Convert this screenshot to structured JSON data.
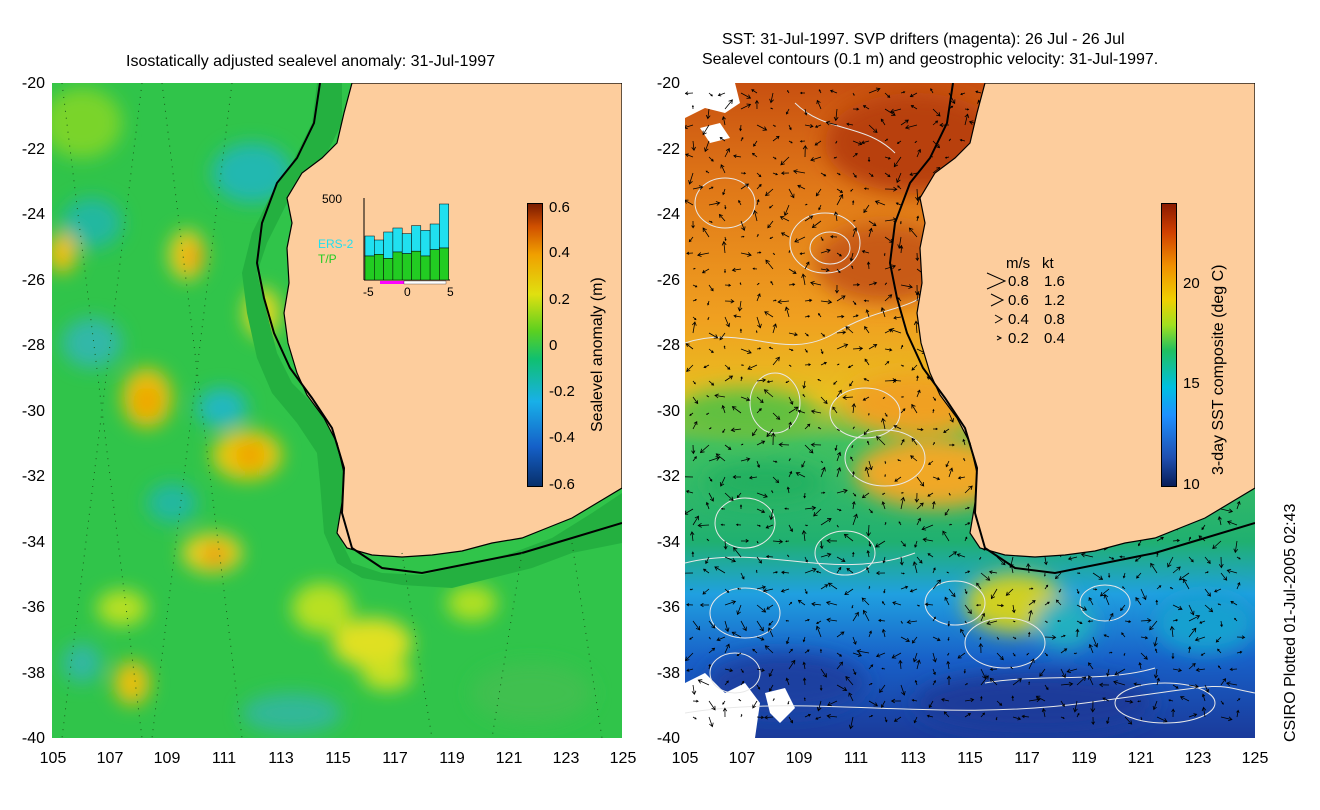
{
  "left_panel": {
    "title": "Isostatically adjusted sealevel anomaly: 31-Jul-1997",
    "colorbar": {
      "label": "Sealevel anomaly (m)",
      "ticks": [
        "0.6",
        "0.4",
        "0.2",
        "0",
        "-0.2",
        "-0.4",
        "-0.6"
      ],
      "colors": [
        "#08306b",
        "#1560c8",
        "#18b0e8",
        "#10c070",
        "#5cd020",
        "#e0e010",
        "#f0a000",
        "#d05000",
        "#7a1c00"
      ]
    },
    "inset": {
      "ymax_label": "500",
      "series_labels": [
        "ERS-2",
        "T/P"
      ],
      "series_colors": [
        "#20e0f0",
        "#22cc22"
      ],
      "x_ticks": [
        "-5",
        "0",
        "5"
      ],
      "tp_values": [
        0.3,
        0.32,
        0.27,
        0.35,
        0.33,
        0.36,
        0.3,
        0.38,
        0.4
      ],
      "ers_values": [
        0.55,
        0.5,
        0.6,
        0.65,
        0.58,
        0.68,
        0.62,
        0.7,
        0.95
      ]
    }
  },
  "right_panel": {
    "title_line1": "SST: 31-Jul-1997. SVP drifters (magenta): 26 Jul - 26 Jul",
    "title_line2": "Sealevel contours (0.1 m) and geostrophic velocity: 31-Jul-1997.",
    "colorbar": {
      "label": "3-day SST composite (deg C)",
      "ticks": [
        "20",
        "15",
        "10"
      ],
      "colors": [
        "#081d58",
        "#1f4fb0",
        "#1e90ff",
        "#00c0e0",
        "#20c060",
        "#a0e020",
        "#f0d000",
        "#f09000",
        "#d04000",
        "#8b1a00"
      ]
    },
    "velocity_key": {
      "header_ms": "m/s",
      "header_kt": "kt",
      "rows": [
        {
          "ms": "0.8",
          "kt": "1.6"
        },
        {
          "ms": "0.6",
          "kt": "1.2"
        },
        {
          "ms": "0.4",
          "kt": "0.8"
        },
        {
          "ms": "0.2",
          "kt": "0.4"
        }
      ]
    }
  },
  "axes": {
    "lat_ticks": [
      "-20",
      "-22",
      "-24",
      "-26",
      "-28",
      "-30",
      "-32",
      "-34",
      "-36",
      "-38",
      "-40"
    ],
    "lon_ticks": [
      "105",
      "107",
      "109",
      "111",
      "113",
      "115",
      "117",
      "119",
      "121",
      "123",
      "125"
    ]
  },
  "colors": {
    "land": "#fdcd9d",
    "ocean_green": "#22c440",
    "coast": "#000000"
  },
  "footer": "CSIRO Plotted 01-Jul-2005 02:43"
}
